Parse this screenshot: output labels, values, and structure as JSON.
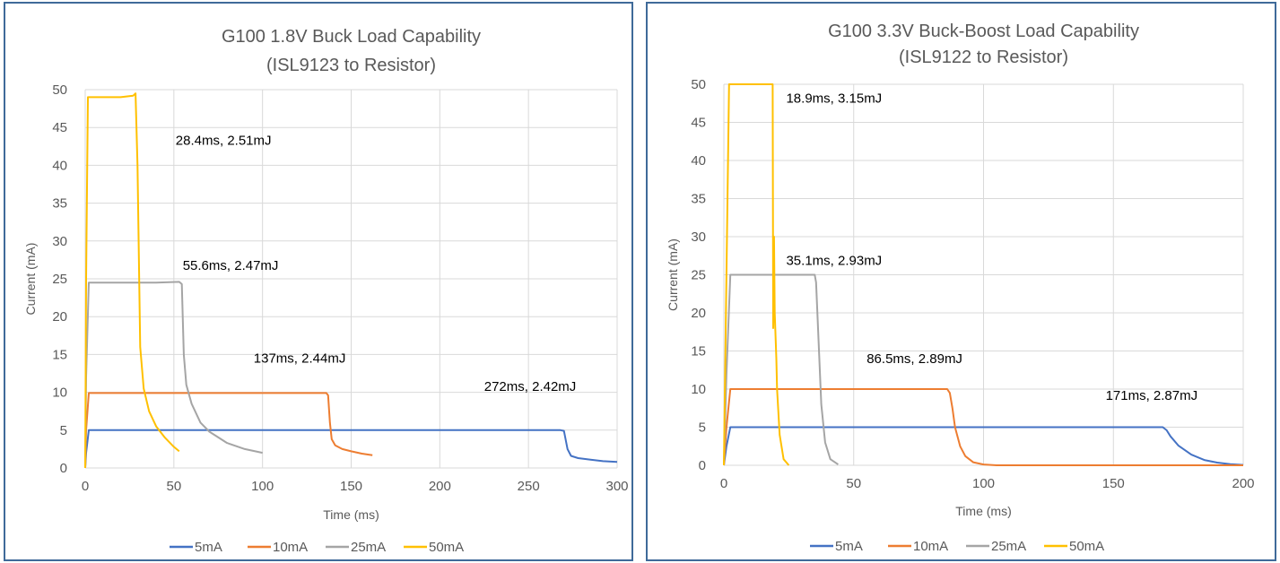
{
  "chart_data": [
    {
      "type": "line",
      "title": "G100 1.8V Buck Load Capability",
      "subtitle": "(ISL9123 to Resistor)",
      "xlabel": "Time (ms)",
      "ylabel": "Current (mA)",
      "xlim": [
        0,
        300
      ],
      "ylim": [
        0,
        50
      ],
      "xticks": [
        "0",
        "50",
        "100",
        "150",
        "200",
        "250",
        "300"
      ],
      "yticks": [
        "0",
        "5",
        "10",
        "15",
        "20",
        "25",
        "30",
        "35",
        "40",
        "45",
        "50"
      ],
      "grid": true,
      "legend_position": "bottom",
      "series": [
        {
          "name": "5mA",
          "color": "#4472c4",
          "x": [
            0,
            0.5,
            2,
            100,
            200,
            268,
            270,
            272,
            274,
            278,
            285,
            292,
            300
          ],
          "y": [
            0,
            2,
            5,
            5,
            5,
            5,
            4.9,
            2.5,
            1.6,
            1.3,
            1.1,
            0.9,
            0.8
          ]
        },
        {
          "name": "10mA",
          "color": "#ed7d31",
          "x": [
            0,
            0.5,
            2,
            50,
            100,
            136,
            137,
            138,
            139,
            141,
            145,
            150,
            156,
            162
          ],
          "y": [
            0,
            5,
            9.9,
            9.9,
            9.9,
            9.9,
            9.6,
            6,
            3.8,
            3,
            2.5,
            2.2,
            1.9,
            1.7
          ]
        },
        {
          "name": "25mA",
          "color": "#a5a5a5",
          "x": [
            0,
            0.5,
            2,
            20,
            40,
            53,
            54.5,
            55.6,
            57,
            60,
            65,
            70,
            80,
            90,
            100
          ],
          "y": [
            0,
            12,
            24.5,
            24.5,
            24.5,
            24.6,
            24.3,
            15,
            11,
            8.5,
            6,
            4.8,
            3.3,
            2.5,
            2
          ]
        },
        {
          "name": "50mA",
          "color": "#ffc000",
          "x": [
            0,
            0.5,
            1.5,
            10,
            20,
            27,
            28.4,
            29.5,
            31,
            33,
            36,
            40,
            45,
            50,
            53
          ],
          "y": [
            0,
            25,
            49,
            49,
            49,
            49.2,
            49.5,
            40,
            16,
            10.5,
            7.5,
            5.5,
            4,
            2.8,
            2.2
          ]
        }
      ],
      "annotations": [
        {
          "text": "28.4ms, 2.51mJ",
          "x": 51,
          "y": 42.7
        },
        {
          "text": "55.6ms, 2.47mJ",
          "x": 55,
          "y": 26.2
        },
        {
          "text": "137ms, 2.44mJ",
          "x": 95,
          "y": 13.9
        },
        {
          "text": "272ms, 2.42mJ",
          "x": 225,
          "y": 10.2
        }
      ]
    },
    {
      "type": "line",
      "title": "G100 3.3V Buck-Boost Load Capability",
      "subtitle": "(ISL9122 to Resistor)",
      "xlabel": "Time (ms)",
      "ylabel": "Current (mA)",
      "xlim": [
        0,
        200
      ],
      "ylim": [
        0,
        50
      ],
      "xticks": [
        "0",
        "50",
        "100",
        "150",
        "200"
      ],
      "yticks": [
        "0",
        "5",
        "10",
        "15",
        "20",
        "25",
        "30",
        "35",
        "40",
        "45",
        "50"
      ],
      "grid": true,
      "legend_position": "bottom",
      "series": [
        {
          "name": "5mA",
          "color": "#4472c4",
          "x": [
            0,
            1,
            2.5,
            50,
            100,
            169,
            170.5,
            172,
            175,
            180,
            185,
            190,
            195,
            200
          ],
          "y": [
            0,
            2.5,
            5,
            5,
            5,
            5,
            4.6,
            3.8,
            2.6,
            1.4,
            0.7,
            0.35,
            0.15,
            0.05
          ]
        },
        {
          "name": "10mA",
          "color": "#ed7d31",
          "x": [
            0,
            1,
            2.5,
            40,
            86,
            87,
            88,
            89,
            91,
            93,
            96,
            100,
            105,
            200
          ],
          "y": [
            0,
            5,
            10,
            10,
            10,
            9.5,
            7.5,
            5,
            2.5,
            1.2,
            0.4,
            0.1,
            0,
            0
          ]
        },
        {
          "name": "25mA",
          "color": "#a5a5a5",
          "x": [
            0,
            1,
            2.5,
            20,
            35,
            35.5,
            36.5,
            37.5,
            39,
            41,
            44
          ],
          "y": [
            0,
            12,
            25,
            25,
            25,
            24,
            16,
            8,
            3,
            0.8,
            0.1
          ]
        },
        {
          "name": "50mA",
          "color": "#ffc000",
          "x": [
            0,
            0.8,
            2,
            10,
            18.8,
            19,
            19.3,
            19.6,
            19.9,
            20.2,
            20.5,
            21.5,
            23,
            25
          ],
          "y": [
            0,
            20,
            50,
            50,
            50,
            18,
            30,
            20,
            17,
            14,
            10,
            4,
            0.8,
            0
          ]
        }
      ],
      "annotations": [
        {
          "text": "18.9ms, 3.15mJ",
          "x": 24,
          "y": 47.6
        },
        {
          "text": "35.1ms, 2.93mJ",
          "x": 24,
          "y": 26.3
        },
        {
          "text": "86.5ms, 2.89mJ",
          "x": 55,
          "y": 13.4
        },
        {
          "text": "171ms, 2.87mJ",
          "x": 147,
          "y": 8.6
        }
      ]
    }
  ]
}
